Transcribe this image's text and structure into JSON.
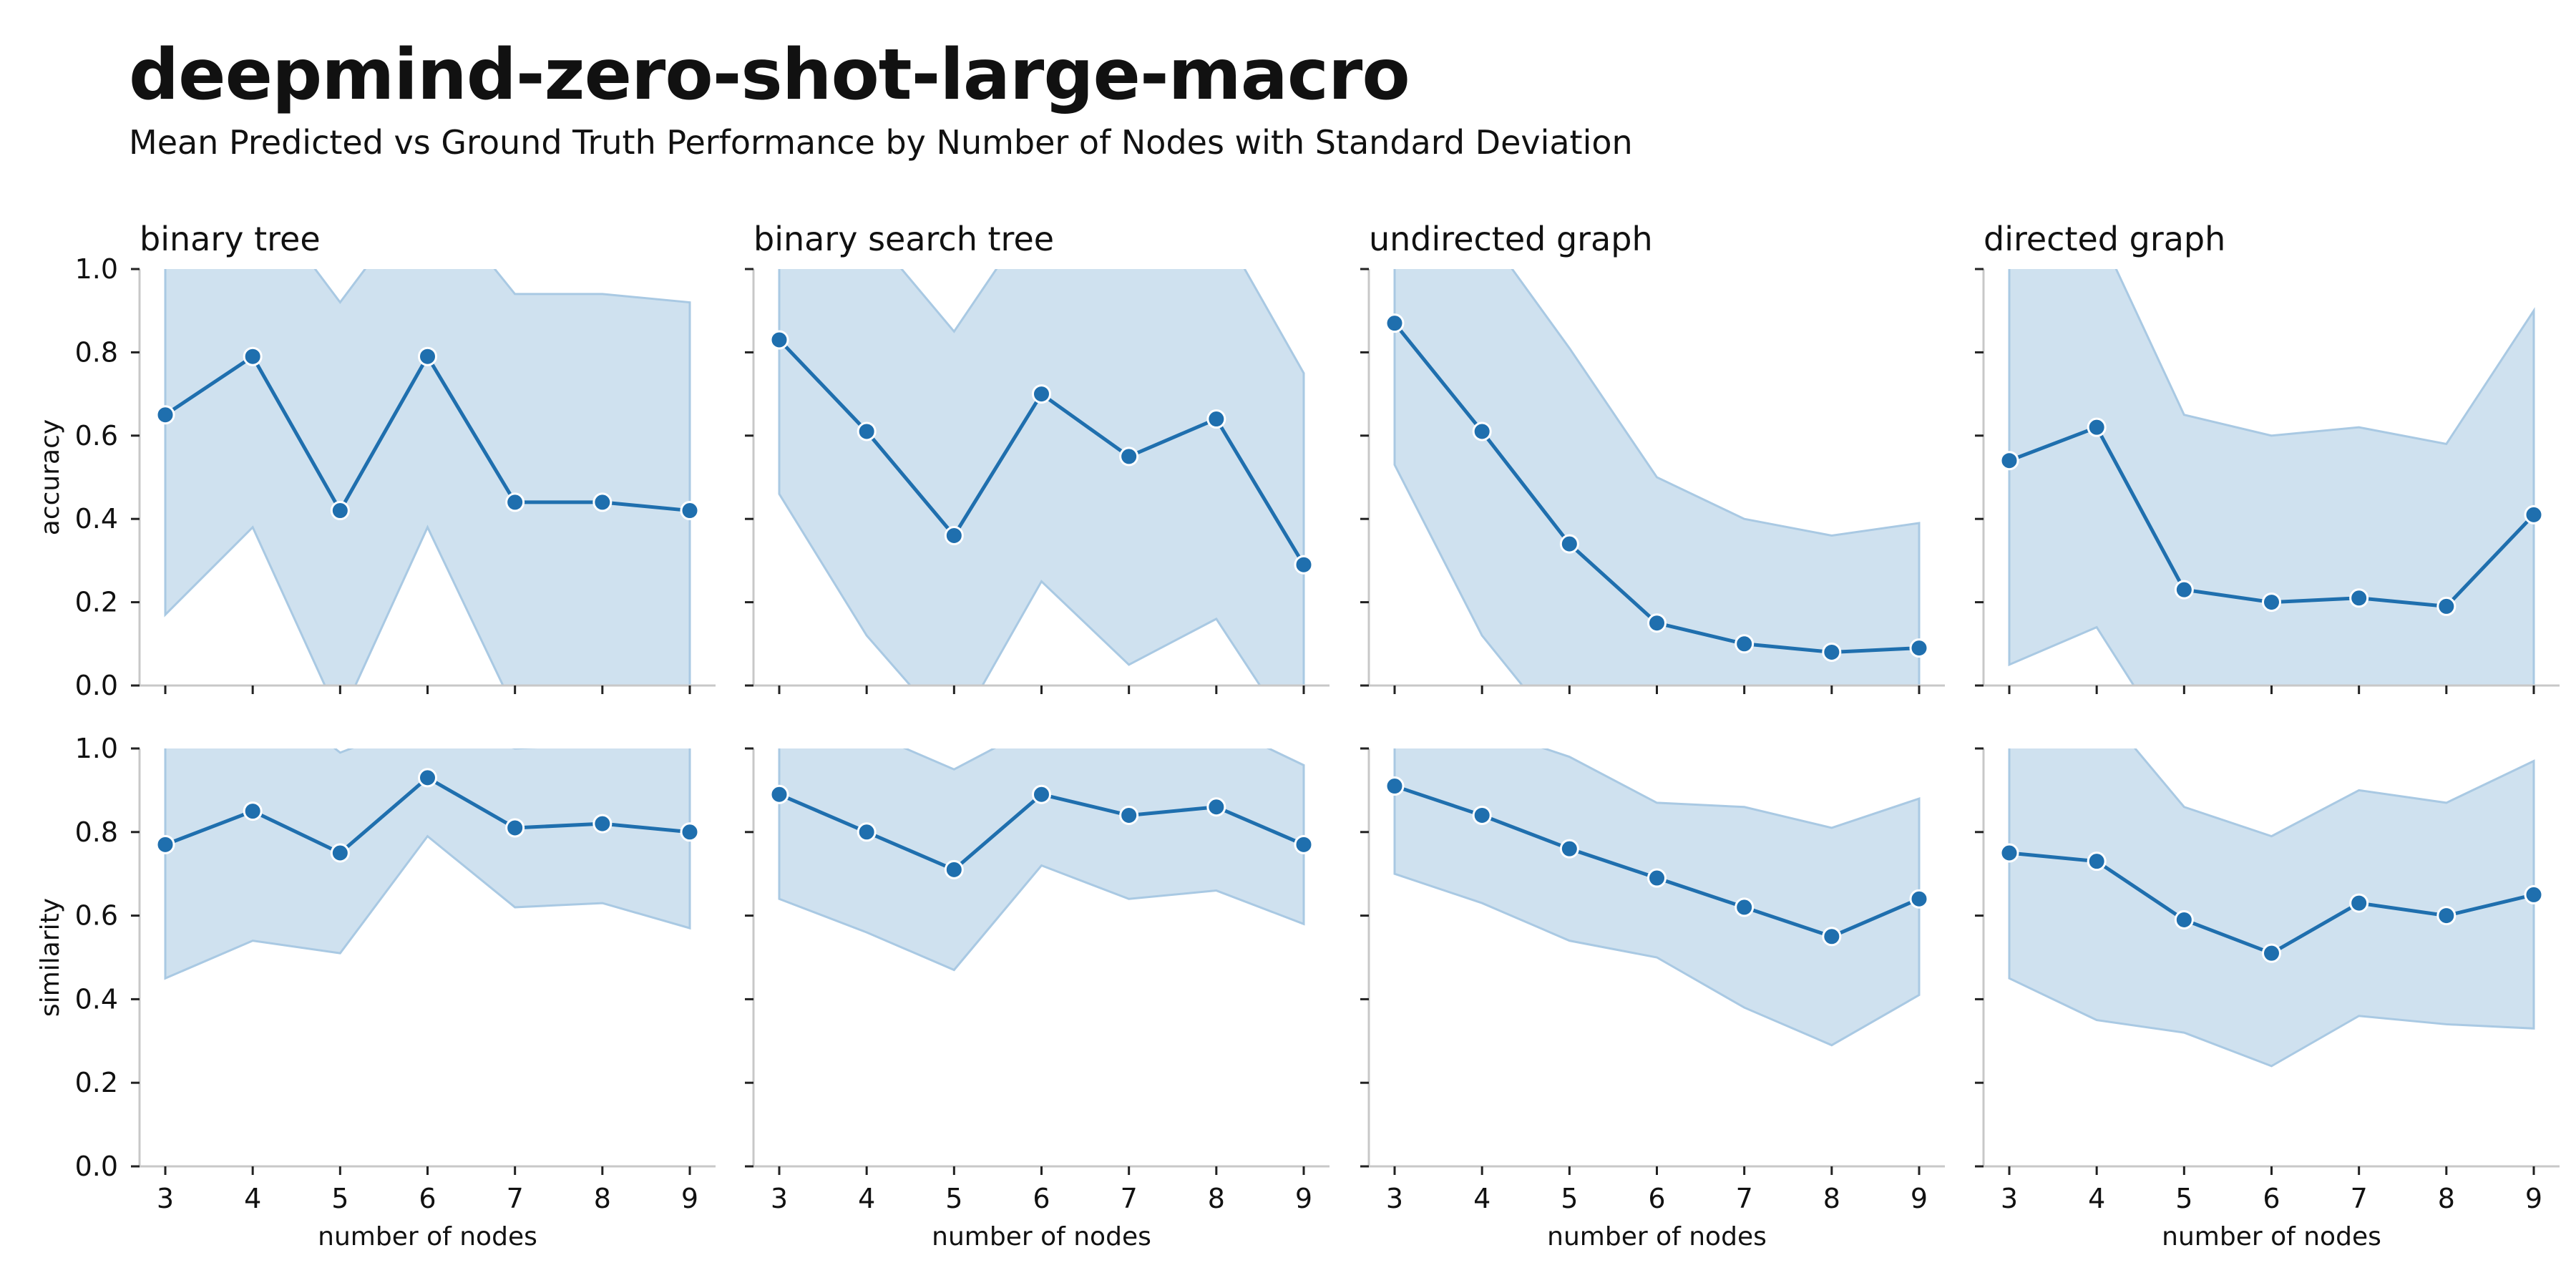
{
  "title": "deepmind-zero-shot-large-macro",
  "subtitle": "Mean Predicted vs Ground Truth Performance by Number of Nodes with Standard Deviation",
  "colors": {
    "line": "#1f6fae",
    "band": "#cfe1ef",
    "band_edge": "#a9c9e3",
    "axis": "#c8c8c8"
  },
  "chart_data": {
    "type": "line",
    "x": [
      3,
      4,
      5,
      6,
      7,
      8,
      9
    ],
    "xlabel": "number of nodes",
    "ylim": [
      0,
      1
    ],
    "yticks": [
      "0.0",
      "0.2",
      "0.4",
      "0.6",
      "0.8",
      "1.0"
    ],
    "columns": [
      "binary tree",
      "binary search tree",
      "undirected graph",
      "directed graph"
    ],
    "rows": [
      "accuracy",
      "similarity"
    ],
    "panels": [
      {
        "row": "accuracy",
        "column": "binary tree",
        "mean": [
          0.65,
          0.79,
          0.42,
          0.79,
          0.44,
          0.44,
          0.42
        ],
        "lower": [
          0.17,
          0.38,
          -0.08,
          0.38,
          -0.06,
          -0.06,
          -0.08
        ],
        "upper": [
          1.13,
          1.2,
          0.92,
          1.2,
          0.94,
          0.94,
          0.92
        ]
      },
      {
        "row": "accuracy",
        "column": "binary search tree",
        "mean": [
          0.83,
          0.61,
          0.36,
          0.7,
          0.55,
          0.64,
          0.29
        ],
        "lower": [
          0.46,
          0.12,
          -0.12,
          0.25,
          0.05,
          0.16,
          -0.16
        ],
        "upper": [
          1.2,
          1.1,
          0.85,
          1.16,
          1.05,
          1.12,
          0.75
        ]
      },
      {
        "row": "accuracy",
        "column": "undirected graph",
        "mean": [
          0.87,
          0.61,
          0.34,
          0.15,
          0.1,
          0.08,
          0.09
        ],
        "lower": [
          0.53,
          0.12,
          -0.14,
          -0.2,
          -0.2,
          -0.2,
          -0.21
        ],
        "upper": [
          1.21,
          1.1,
          0.81,
          0.5,
          0.4,
          0.36,
          0.39
        ]
      },
      {
        "row": "accuracy",
        "column": "directed graph",
        "mean": [
          0.54,
          0.62,
          0.23,
          0.2,
          0.21,
          0.19,
          0.41
        ],
        "lower": [
          0.05,
          0.14,
          -0.19,
          -0.2,
          -0.2,
          -0.2,
          -0.08
        ],
        "upper": [
          1.03,
          1.1,
          0.65,
          0.6,
          0.62,
          0.58,
          0.9
        ]
      },
      {
        "row": "similarity",
        "column": "binary tree",
        "mean": [
          0.77,
          0.85,
          0.75,
          0.93,
          0.81,
          0.82,
          0.8
        ],
        "lower": [
          0.45,
          0.54,
          0.51,
          0.79,
          0.62,
          0.63,
          0.57
        ],
        "upper": [
          1.09,
          1.16,
          0.99,
          1.07,
          1.0,
          1.01,
          1.03
        ]
      },
      {
        "row": "similarity",
        "column": "binary search tree",
        "mean": [
          0.89,
          0.8,
          0.71,
          0.89,
          0.84,
          0.86,
          0.77
        ],
        "lower": [
          0.64,
          0.56,
          0.47,
          0.72,
          0.64,
          0.66,
          0.58
        ],
        "upper": [
          1.14,
          1.04,
          0.95,
          1.06,
          1.04,
          1.06,
          0.96
        ]
      },
      {
        "row": "similarity",
        "column": "undirected graph",
        "mean": [
          0.91,
          0.84,
          0.76,
          0.69,
          0.62,
          0.55,
          0.64
        ],
        "lower": [
          0.7,
          0.63,
          0.54,
          0.5,
          0.38,
          0.29,
          0.41
        ],
        "upper": [
          1.12,
          1.05,
          0.98,
          0.87,
          0.86,
          0.81,
          0.88
        ]
      },
      {
        "row": "similarity",
        "column": "directed graph",
        "mean": [
          0.75,
          0.73,
          0.59,
          0.51,
          0.63,
          0.6,
          0.65
        ],
        "lower": [
          0.45,
          0.35,
          0.32,
          0.24,
          0.36,
          0.34,
          0.33
        ],
        "upper": [
          1.05,
          1.11,
          0.86,
          0.79,
          0.9,
          0.87,
          0.97
        ]
      }
    ]
  }
}
